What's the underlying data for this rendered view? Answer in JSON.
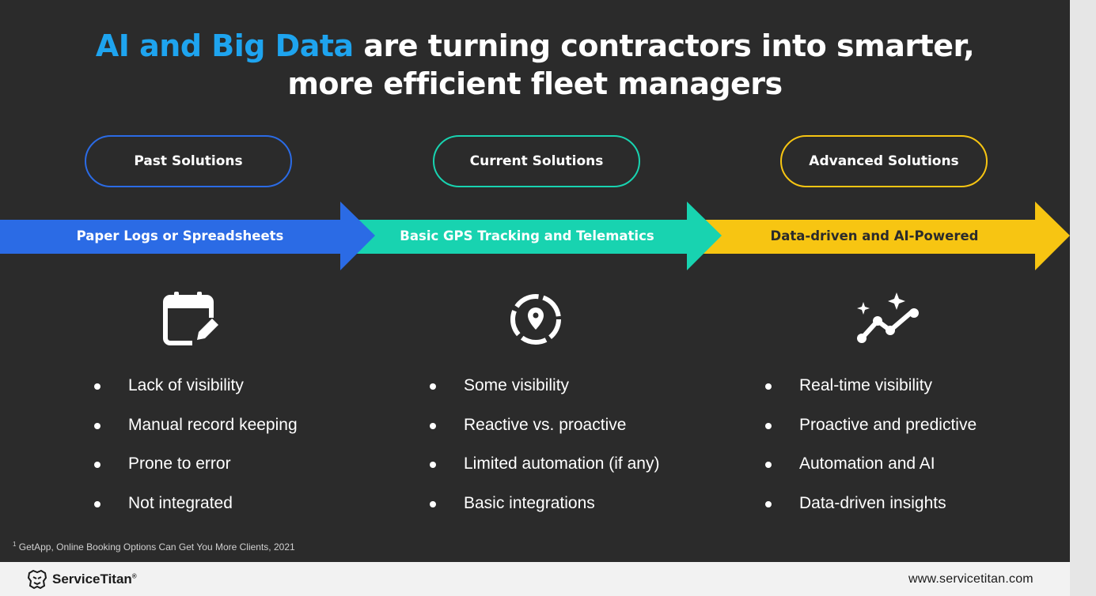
{
  "title": {
    "accent": "AI and Big Data",
    "rest_line1": " are turning contractors into smarter,",
    "line2": "more efficient fleet managers"
  },
  "columns": [
    {
      "pill_label": "Past Solutions",
      "arrow_label": "Paper Logs or Spreadsheets",
      "icon": "calendar-edit-icon",
      "color": "#2b6be5",
      "bullets": [
        "Lack of visibility",
        "Manual record keeping",
        "Prone to error",
        "Not integrated"
      ]
    },
    {
      "pill_label": "Current Solutions",
      "arrow_label": "Basic GPS Tracking and Telematics",
      "icon": "location-target-icon",
      "color": "#18d3b0",
      "bullets": [
        "Some visibility",
        "Reactive vs. proactive",
        "Limited automation (if any)",
        "Basic integrations"
      ]
    },
    {
      "pill_label": "Advanced Solutions",
      "arrow_label": "Data-driven and AI-Powered",
      "icon": "sparkle-trend-icon",
      "color": "#f7c512",
      "bullets": [
        "Real-time visibility",
        "Proactive and predictive",
        "Automation and AI",
        "Data-driven insights"
      ]
    }
  ],
  "footnote": {
    "marker": "1",
    "text": " GetApp, Online Booking Options Can Get You More Clients, 2021"
  },
  "footer": {
    "brand": "ServiceTitan",
    "trademark": "®",
    "url": "www.servicetitan.com"
  }
}
